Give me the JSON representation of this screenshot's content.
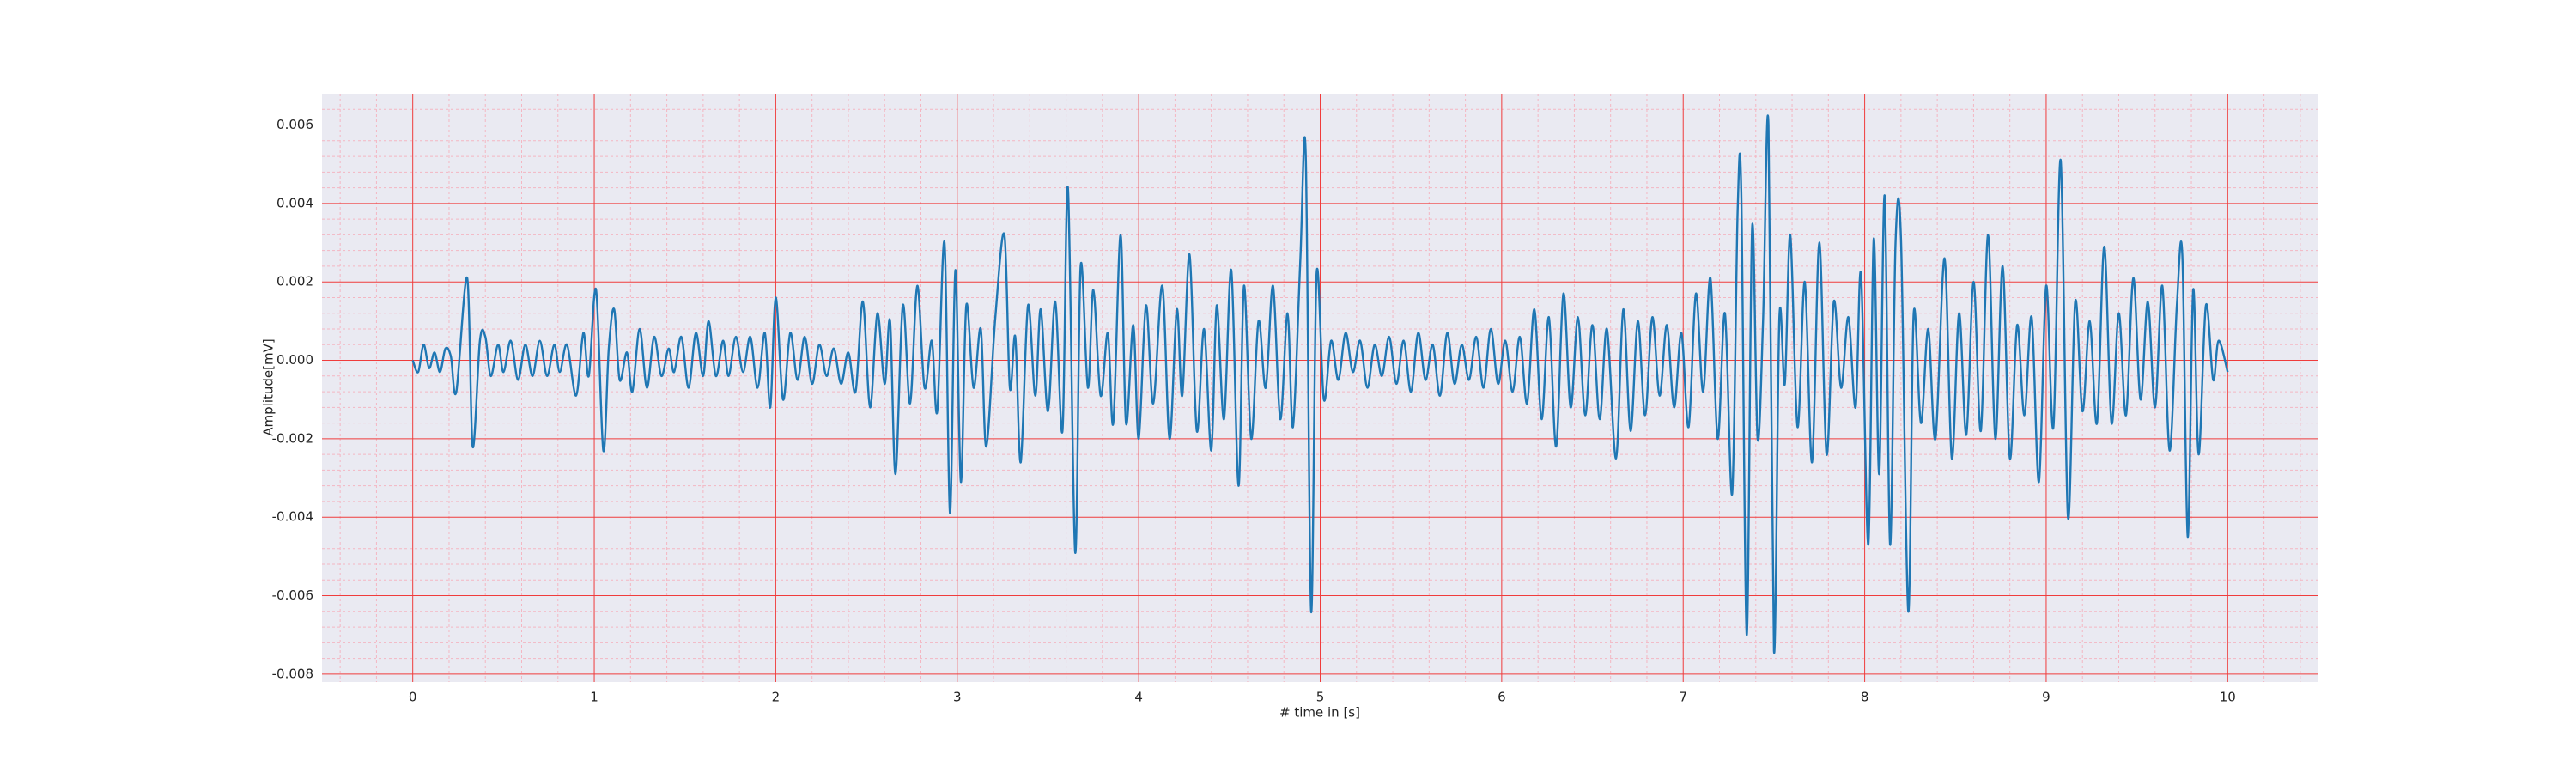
{
  "chart_data": {
    "type": "line",
    "xlabel": "# time in [s]",
    "ylabel": "Amplitude[mV]",
    "color": "#1f77b4",
    "grid": true,
    "xlim": [
      -0.5,
      10.5
    ],
    "xticks": [
      0,
      1,
      2,
      3,
      4,
      5,
      6,
      7,
      8,
      9,
      10
    ],
    "ylim": [
      -0.0082,
      0.0068
    ],
    "yticks": [
      -0.008,
      -0.006,
      -0.004,
      -0.002,
      {
        "value": 0,
        "label": "0.000"
      },
      0.002,
      0.004,
      0.006
    ],
    "x": [
      0.0,
      0.03,
      0.06,
      0.09,
      0.12,
      0.15,
      0.18,
      0.21,
      0.24,
      0.3,
      0.33,
      0.37,
      0.4,
      0.43,
      0.47,
      0.5,
      0.54,
      0.58,
      0.62,
      0.66,
      0.7,
      0.74,
      0.78,
      0.81,
      0.85,
      0.9,
      0.94,
      0.97,
      1.01,
      1.05,
      1.08,
      1.11,
      1.14,
      1.18,
      1.21,
      1.25,
      1.29,
      1.33,
      1.37,
      1.41,
      1.44,
      1.48,
      1.52,
      1.56,
      1.6,
      1.63,
      1.67,
      1.71,
      1.74,
      1.78,
      1.82,
      1.86,
      1.9,
      1.94,
      1.97,
      2.0,
      2.04,
      2.08,
      2.12,
      2.16,
      2.2,
      2.24,
      2.28,
      2.32,
      2.36,
      2.4,
      2.44,
      2.48,
      2.52,
      2.56,
      2.6,
      2.63,
      2.66,
      2.7,
      2.74,
      2.78,
      2.82,
      2.86,
      2.89,
      2.93,
      2.96,
      2.99,
      3.02,
      3.05,
      3.09,
      3.13,
      3.16,
      3.21,
      3.26,
      3.29,
      3.32,
      3.35,
      3.39,
      3.43,
      3.46,
      3.5,
      3.54,
      3.58,
      3.61,
      3.65,
      3.68,
      3.72,
      3.75,
      3.79,
      3.83,
      3.86,
      3.9,
      3.93,
      3.97,
      4.0,
      4.04,
      4.08,
      4.13,
      4.17,
      4.21,
      4.24,
      4.28,
      4.32,
      4.36,
      4.4,
      4.43,
      4.47,
      4.51,
      4.55,
      4.58,
      4.62,
      4.66,
      4.7,
      4.74,
      4.78,
      4.82,
      4.85,
      4.89,
      4.92,
      4.95,
      4.98,
      5.02,
      5.06,
      5.1,
      5.14,
      5.18,
      5.22,
      5.26,
      5.3,
      5.34,
      5.38,
      5.42,
      5.46,
      5.5,
      5.54,
      5.58,
      5.62,
      5.66,
      5.7,
      5.74,
      5.78,
      5.82,
      5.86,
      5.9,
      5.94,
      5.98,
      6.02,
      6.06,
      6.1,
      6.14,
      6.18,
      6.22,
      6.26,
      6.3,
      6.34,
      6.38,
      6.42,
      6.46,
      6.5,
      6.54,
      6.58,
      6.63,
      6.67,
      6.71,
      6.75,
      6.79,
      6.83,
      6.87,
      6.91,
      6.95,
      6.99,
      7.03,
      7.07,
      7.11,
      7.15,
      7.19,
      7.23,
      7.27,
      7.3,
      7.32,
      7.35,
      7.38,
      7.41,
      7.44,
      7.47,
      7.5,
      7.53,
      7.56,
      7.59,
      7.63,
      7.67,
      7.71,
      7.75,
      7.79,
      7.83,
      7.87,
      7.91,
      7.95,
      7.98,
      8.02,
      8.05,
      8.08,
      8.11,
      8.14,
      8.17,
      8.2,
      8.24,
      8.27,
      8.31,
      8.35,
      8.39,
      8.44,
      8.48,
      8.52,
      8.56,
      8.6,
      8.64,
      8.68,
      8.72,
      8.76,
      8.8,
      8.84,
      8.88,
      8.92,
      8.96,
      9.0,
      9.04,
      9.08,
      9.12,
      9.16,
      9.2,
      9.24,
      9.28,
      9.32,
      9.36,
      9.4,
      9.44,
      9.48,
      9.52,
      9.56,
      9.6,
      9.64,
      9.68,
      9.72,
      9.75,
      9.78,
      9.81,
      9.84,
      9.88,
      9.92,
      9.95,
      10.0
    ],
    "values": [
      0,
      -0.0003,
      0.0004,
      -0.0002,
      0.0002,
      -0.0003,
      0.0003,
      0.0001,
      -0.0008,
      0.0021,
      -0.0022,
      0.0005,
      0.0006,
      -0.0004,
      0.0004,
      -0.0003,
      0.0005,
      -0.0005,
      0.0004,
      -0.0004,
      0.0005,
      -0.0004,
      0.0004,
      -0.0003,
      0.0004,
      -0.0009,
      0.0007,
      -0.0004,
      0.0018,
      -0.0023,
      0.0003,
      0.0013,
      -0.0005,
      0.0002,
      -0.0008,
      0.0008,
      -0.0007,
      0.0006,
      -0.0004,
      0.0003,
      -0.0003,
      0.0006,
      -0.0007,
      0.0007,
      -0.0004,
      0.001,
      -0.0004,
      0.0005,
      -0.0004,
      0.0006,
      -0.0003,
      0.0006,
      -0.0007,
      0.0007,
      -0.0012,
      0.0016,
      -0.001,
      0.0007,
      -0.0005,
      0.0006,
      -0.0006,
      0.0004,
      -0.0004,
      0.0003,
      -0.0006,
      0.0002,
      -0.0008,
      0.0015,
      -0.0012,
      0.0012,
      -0.0006,
      0.001,
      -0.0029,
      0.0014,
      -0.0011,
      0.0019,
      -0.0007,
      0.0005,
      -0.0013,
      0.003,
      -0.0039,
      0.0023,
      -0.0031,
      0.0014,
      -0.0007,
      0.0008,
      -0.0022,
      0.0011,
      0.0032,
      -0.0007,
      0.0006,
      -0.0026,
      0.0014,
      -0.0009,
      0.0013,
      -0.0013,
      0.0015,
      -0.0018,
      0.0044,
      -0.0049,
      0.0024,
      -0.0007,
      0.0018,
      -0.0009,
      0.0007,
      -0.0016,
      0.0032,
      -0.0016,
      0.0009,
      -0.002,
      0.0014,
      -0.0011,
      0.0019,
      -0.002,
      0.0013,
      -0.0009,
      0.0027,
      -0.0018,
      0.0008,
      -0.0023,
      0.0014,
      -0.0015,
      0.0023,
      -0.0032,
      0.0019,
      -0.002,
      0.001,
      -0.0007,
      0.0019,
      -0.0015,
      0.0012,
      -0.0017,
      0.0025,
      0.0053,
      -0.0064,
      0.0022,
      -0.001,
      0.0005,
      -0.0005,
      0.0007,
      -0.0003,
      0.0005,
      -0.0007,
      0.0004,
      -0.0004,
      0.0006,
      -0.0006,
      0.0005,
      -0.0008,
      0.0007,
      -0.0005,
      0.0004,
      -0.0009,
      0.0007,
      -0.0006,
      0.0004,
      -0.0005,
      0.0006,
      -0.0007,
      0.0008,
      -0.0006,
      0.0005,
      -0.0008,
      0.0006,
      -0.0011,
      0.0013,
      -0.0015,
      0.0011,
      -0.0022,
      0.0017,
      -0.0012,
      0.0011,
      -0.0014,
      0.0009,
      -0.0015,
      0.0008,
      -0.0025,
      0.0013,
      -0.0018,
      0.001,
      -0.0014,
      0.0011,
      -0.0009,
      0.0009,
      -0.0012,
      0.0007,
      -0.0017,
      0.0017,
      -0.0008,
      0.0021,
      -0.002,
      0.0012,
      -0.0034,
      0.0038,
      0.0043,
      -0.007,
      0.0034,
      -0.002,
      0.001,
      0.006,
      -0.0074,
      0.0011,
      -0.0006,
      0.0032,
      -0.0017,
      0.002,
      -0.0026,
      0.003,
      -0.0024,
      0.0015,
      -0.0007,
      0.0011,
      -0.0012,
      0.0022,
      -0.0047,
      0.0031,
      -0.0029,
      0.0042,
      -0.0047,
      0.003,
      0.0031,
      -0.0064,
      0.0012,
      -0.0016,
      0.0008,
      -0.002,
      0.0026,
      -0.0025,
      0.0012,
      -0.0019,
      0.002,
      -0.0018,
      0.0032,
      -0.002,
      0.0024,
      -0.0025,
      0.0009,
      -0.0014,
      0.0011,
      -0.0031,
      0.0019,
      -0.0017,
      0.0051,
      -0.004,
      0.0015,
      -0.0013,
      0.001,
      -0.0016,
      0.0029,
      -0.0016,
      0.0012,
      -0.0014,
      0.0021,
      -0.001,
      0.0015,
      -0.0012,
      0.0019,
      -0.0023,
      0.0014,
      0.0027,
      -0.0045,
      0.0018,
      -0.0024,
      0.0014,
      -0.0005,
      0.0005,
      -0.0003
    ]
  }
}
